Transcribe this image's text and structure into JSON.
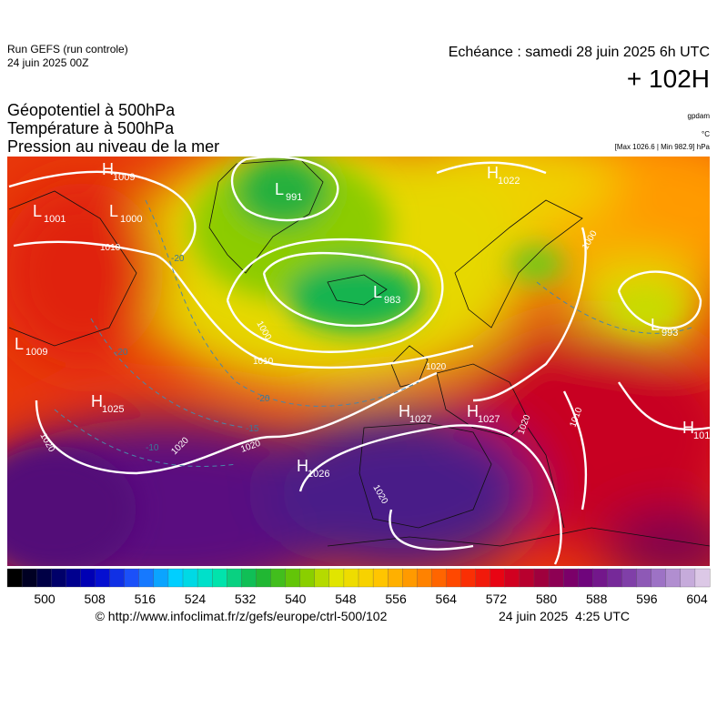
{
  "header": {
    "run": "Run GEFS (run controle)",
    "run_date": "24 juin 2025 00Z",
    "echeance": "Echéance : samedi 28 juin 2025 6h UTC",
    "lead": "+ 102H",
    "titles": [
      "Géopotentiel à 500hPa",
      "Température à 500hPa",
      "Pression au niveau de la mer"
    ],
    "unit_geo": "gpdam",
    "unit_temp": "°C",
    "pressure_range": "[Max 1026.6 | Min 982.9] hPa"
  },
  "map": {
    "centers": [
      {
        "letter": "H",
        "value": "1009"
      },
      {
        "letter": "L",
        "value": "1001"
      },
      {
        "letter": "L",
        "value": "1000"
      },
      {
        "letter": "L",
        "value": "991"
      },
      {
        "letter": "L",
        "value": "983"
      },
      {
        "letter": "H",
        "value": "1022"
      },
      {
        "letter": "L",
        "value": "993"
      },
      {
        "letter": "L",
        "value": "1009"
      },
      {
        "letter": "H",
        "value": "1025"
      },
      {
        "letter": "H",
        "value": "1027"
      },
      {
        "letter": "H",
        "value": "1027"
      },
      {
        "letter": "H",
        "value": "1026"
      },
      {
        "letter": "H",
        "value": "101"
      }
    ],
    "isobar_labels": [
      "1010",
      "1000",
      "1010",
      "1020",
      "1020",
      "1020",
      "1020",
      "1020",
      "1020",
      "1010",
      "1000"
    ],
    "temperature_labels": [
      "-20",
      "-20",
      "-20",
      "-15",
      "-10"
    ]
  },
  "colorbar": {
    "labels": [
      500,
      508,
      516,
      524,
      532,
      540,
      548,
      556,
      564,
      572,
      580,
      588,
      596,
      604
    ],
    "color_stops": [
      "#000000",
      "#000060",
      "#0000c8",
      "#1e5aff",
      "#00d2ff",
      "#00e6b4",
      "#14b43c",
      "#6ec800",
      "#e6e600",
      "#ffc800",
      "#ff8c00",
      "#ff3c00",
      "#e60014",
      "#a0003c",
      "#6e0078",
      "#7832a0",
      "#a078c8",
      "#dcc8e6"
    ]
  },
  "footer": {
    "url": "© http://www.infoclimat.fr/z/gefs/europe/ctrl-500/102",
    "timestamp": "24 juin 2025  4:25 UTC"
  }
}
